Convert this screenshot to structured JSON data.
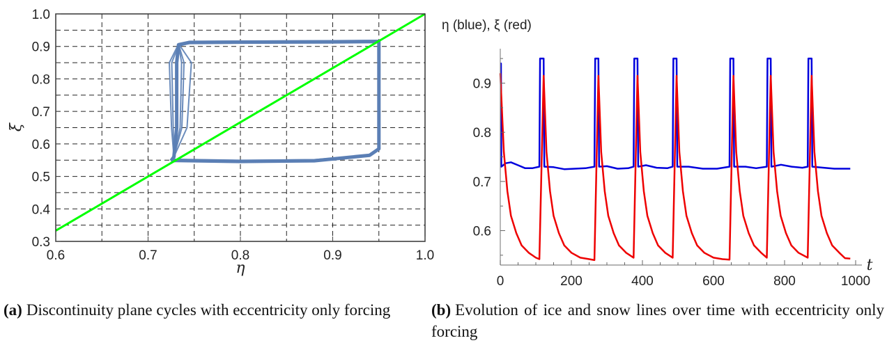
{
  "chart_data": [
    {
      "type": "line",
      "panel_label": "(a)",
      "caption": "Discontinuity plane cycles with eccentricity only forcing",
      "xlabel": "η",
      "ylabel": "ξ",
      "xlim": [
        0.6,
        1.0
      ],
      "ylim": [
        0.3,
        1.0
      ],
      "xticks": [
        "0.6",
        "0.7",
        "0.8",
        "0.9",
        "1.0"
      ],
      "yticks": [
        "0.3",
        "0.4",
        "0.5",
        "0.6",
        "0.7",
        "0.8",
        "0.9",
        "1.0"
      ],
      "grid": true,
      "series": [
        {
          "color": "#5b7fb5",
          "points": [
            [
              0.725,
              0.548
            ],
            [
              0.73,
              0.549
            ],
            [
              0.8,
              0.546
            ],
            [
              0.88,
              0.548
            ],
            [
              0.94,
              0.565
            ],
            [
              0.95,
              0.585
            ],
            [
              0.95,
              0.7
            ],
            [
              0.95,
              0.8
            ],
            [
              0.95,
              0.915
            ],
            [
              0.9,
              0.914
            ],
            [
              0.8,
              0.913
            ],
            [
              0.745,
              0.912
            ],
            [
              0.733,
              0.905
            ],
            [
              0.731,
              0.85
            ],
            [
              0.731,
              0.75
            ],
            [
              0.731,
              0.65
            ],
            [
              0.728,
              0.56
            ],
            [
              0.725,
              0.548
            ]
          ]
        },
        {
          "color": "#00ff00",
          "points": [
            [
              0.6,
              0.333
            ],
            [
              1.0,
              1.0
            ]
          ]
        }
      ]
    },
    {
      "type": "line",
      "panel_label": "(b)",
      "caption": "Evolution of ice and snow lines over time with eccentricity only forcing",
      "title": "η (blue), ξ (red)",
      "xlabel": "t",
      "xlim": [
        0,
        1000
      ],
      "ylim": [
        0.53,
        0.97
      ],
      "xticks": [
        "0",
        "200",
        "400",
        "600",
        "800",
        "1000"
      ],
      "yticks": [
        "0.6",
        "0.7",
        "0.8",
        "0.9"
      ],
      "grid": false,
      "cycles": [
        [
          0,
          110
        ],
        [
          110,
          265
        ],
        [
          265,
          375
        ],
        [
          375,
          485
        ],
        [
          485,
          645
        ],
        [
          645,
          750
        ],
        [
          750,
          865
        ],
        [
          865,
          1000
        ]
      ],
      "series": [
        {
          "name": "η",
          "color": "#0000dd",
          "points": [
            [
              0,
              0.94
            ],
            [
              2,
              0.94
            ],
            [
              3,
              0.73
            ],
            [
              15,
              0.737
            ],
            [
              30,
              0.739
            ],
            [
              50,
              0.733
            ],
            [
              70,
              0.727
            ],
            [
              90,
              0.727
            ],
            [
              110,
              0.73
            ],
            [
              112,
              0.95
            ],
            [
              122,
              0.95
            ],
            [
              124,
              0.73
            ],
            [
              150,
              0.729
            ],
            [
              180,
              0.725
            ],
            [
              210,
              0.726
            ],
            [
              240,
              0.727
            ],
            [
              265,
              0.73
            ],
            [
              267,
              0.95
            ],
            [
              276,
              0.95
            ],
            [
              278,
              0.73
            ],
            [
              300,
              0.731
            ],
            [
              330,
              0.726
            ],
            [
              360,
              0.727
            ],
            [
              375,
              0.73
            ],
            [
              377,
              0.95
            ],
            [
              386,
              0.95
            ],
            [
              388,
              0.73
            ],
            [
              410,
              0.733
            ],
            [
              440,
              0.728
            ],
            [
              470,
              0.727
            ],
            [
              485,
              0.73
            ],
            [
              487,
              0.95
            ],
            [
              496,
              0.95
            ],
            [
              498,
              0.73
            ],
            [
              530,
              0.73
            ],
            [
              570,
              0.726
            ],
            [
              610,
              0.726
            ],
            [
              645,
              0.73
            ],
            [
              647,
              0.95
            ],
            [
              656,
              0.95
            ],
            [
              658,
              0.73
            ],
            [
              690,
              0.73
            ],
            [
              720,
              0.727
            ],
            [
              750,
              0.73
            ],
            [
              752,
              0.95
            ],
            [
              761,
              0.95
            ],
            [
              763,
              0.73
            ],
            [
              790,
              0.734
            ],
            [
              820,
              0.73
            ],
            [
              850,
              0.728
            ],
            [
              865,
              0.73
            ],
            [
              867,
              0.95
            ],
            [
              876,
              0.95
            ],
            [
              878,
              0.73
            ],
            [
              910,
              0.728
            ],
            [
              940,
              0.726
            ],
            [
              970,
              0.726
            ],
            [
              985,
              0.726
            ]
          ]
        },
        {
          "name": "ξ",
          "color": "#ee0000",
          "points": [
            [
              0,
              0.92
            ],
            [
              10,
              0.76
            ],
            [
              20,
              0.68
            ],
            [
              30,
              0.63
            ],
            [
              45,
              0.595
            ],
            [
              60,
              0.57
            ],
            [
              80,
              0.555
            ],
            [
              100,
              0.545
            ],
            [
              110,
              0.542
            ],
            [
              122,
              0.915
            ],
            [
              130,
              0.76
            ],
            [
              140,
              0.68
            ],
            [
              150,
              0.63
            ],
            [
              165,
              0.595
            ],
            [
              180,
              0.57
            ],
            [
              200,
              0.555
            ],
            [
              225,
              0.545
            ],
            [
              250,
              0.542
            ],
            [
              265,
              0.54
            ],
            [
              276,
              0.915
            ],
            [
              284,
              0.76
            ],
            [
              294,
              0.68
            ],
            [
              304,
              0.63
            ],
            [
              319,
              0.595
            ],
            [
              334,
              0.57
            ],
            [
              354,
              0.555
            ],
            [
              375,
              0.545
            ],
            [
              386,
              0.915
            ],
            [
              394,
              0.76
            ],
            [
              404,
              0.68
            ],
            [
              414,
              0.63
            ],
            [
              429,
              0.595
            ],
            [
              444,
              0.57
            ],
            [
              464,
              0.555
            ],
            [
              485,
              0.545
            ],
            [
              496,
              0.915
            ],
            [
              504,
              0.76
            ],
            [
              514,
              0.68
            ],
            [
              524,
              0.63
            ],
            [
              539,
              0.595
            ],
            [
              554,
              0.57
            ],
            [
              574,
              0.555
            ],
            [
              600,
              0.545
            ],
            [
              625,
              0.542
            ],
            [
              645,
              0.541
            ],
            [
              656,
              0.915
            ],
            [
              664,
              0.76
            ],
            [
              674,
              0.68
            ],
            [
              684,
              0.63
            ],
            [
              699,
              0.595
            ],
            [
              714,
              0.57
            ],
            [
              734,
              0.555
            ],
            [
              750,
              0.545
            ],
            [
              761,
              0.915
            ],
            [
              769,
              0.76
            ],
            [
              779,
              0.68
            ],
            [
              789,
              0.63
            ],
            [
              804,
              0.595
            ],
            [
              819,
              0.57
            ],
            [
              839,
              0.555
            ],
            [
              865,
              0.545
            ],
            [
              876,
              0.915
            ],
            [
              884,
              0.76
            ],
            [
              894,
              0.68
            ],
            [
              904,
              0.63
            ],
            [
              919,
              0.595
            ],
            [
              934,
              0.57
            ],
            [
              954,
              0.555
            ],
            [
              970,
              0.544
            ],
            [
              985,
              0.543
            ]
          ]
        }
      ]
    }
  ]
}
